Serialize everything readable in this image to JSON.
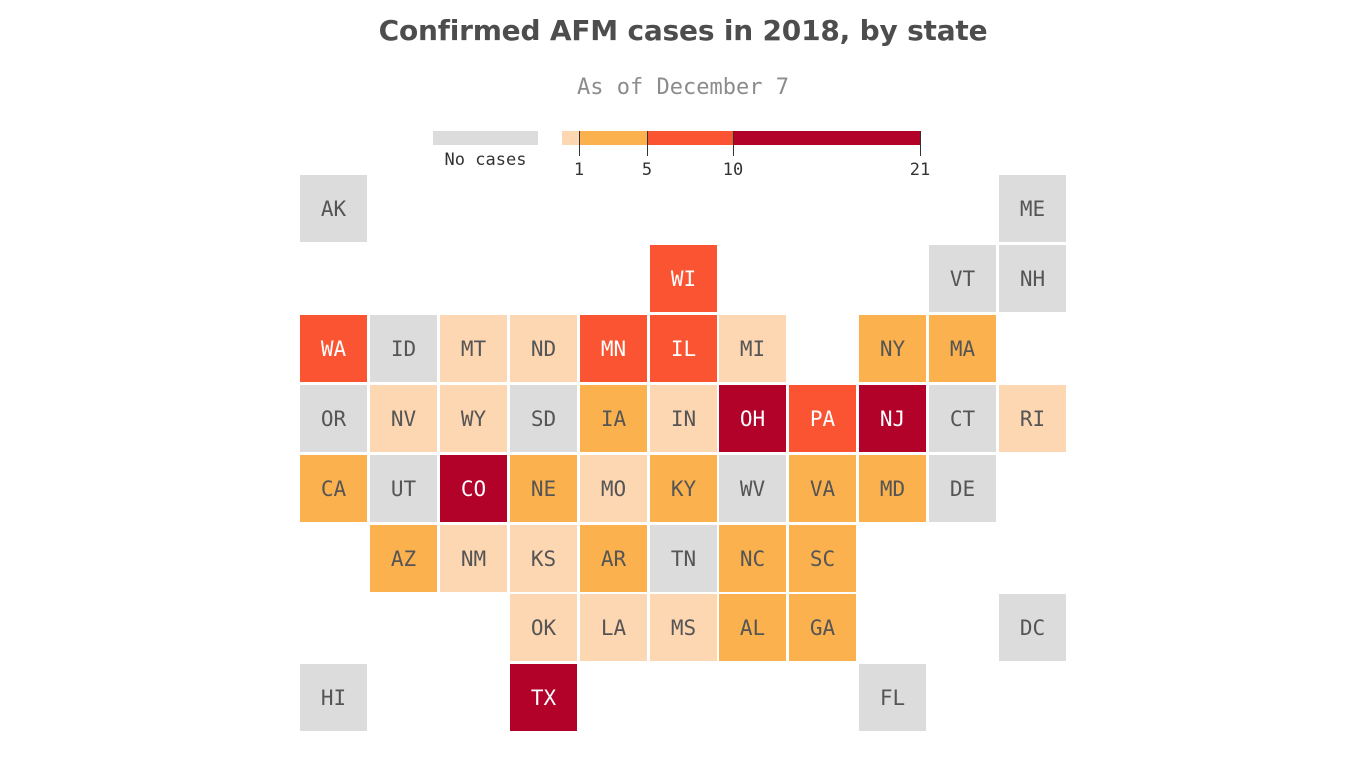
{
  "title": "Confirmed AFM cases in 2018, by state",
  "subtitle": "As of December 7",
  "colors": {
    "none": "#dcdcdc",
    "c1": "#fdd6b2",
    "c2": "#fbb24e",
    "c3": "#fb5432",
    "c4": "#b2022a",
    "text_dark": "#555555",
    "text_light": "#ffffff"
  },
  "legend": {
    "no_cases_label": "No cases",
    "ticks": [
      {
        "value": "1"
      },
      {
        "value": "5"
      },
      {
        "value": "10"
      },
      {
        "value": "21"
      }
    ],
    "bins": [
      {
        "from": 0,
        "to": 1,
        "color": "#fdd6b2"
      },
      {
        "from": 1,
        "to": 5,
        "color": "#fbb24e"
      },
      {
        "from": 5,
        "to": 10,
        "color": "#fb5432"
      },
      {
        "from": 10,
        "to": 21,
        "color": "#b2022a"
      }
    ]
  },
  "chart_data": {
    "type": "tile-grid-map",
    "title": "Confirmed AFM cases in 2018, by state",
    "subtitle": "As of December 7",
    "color_scale": "binned: no cases (0) grey; 1; 1-5; 5-10; 10-21",
    "states": [
      {
        "abbr": "AK",
        "row": 0,
        "col": 0,
        "bin": "none"
      },
      {
        "abbr": "ME",
        "row": 0,
        "col": 10,
        "bin": "none"
      },
      {
        "abbr": "WI",
        "row": 1,
        "col": 5,
        "bin": "c3"
      },
      {
        "abbr": "VT",
        "row": 1,
        "col": 9,
        "bin": "none"
      },
      {
        "abbr": "NH",
        "row": 1,
        "col": 10,
        "bin": "none"
      },
      {
        "abbr": "WA",
        "row": 2,
        "col": 0,
        "bin": "c3"
      },
      {
        "abbr": "ID",
        "row": 2,
        "col": 1,
        "bin": "none"
      },
      {
        "abbr": "MT",
        "row": 2,
        "col": 2,
        "bin": "c1"
      },
      {
        "abbr": "ND",
        "row": 2,
        "col": 3,
        "bin": "c1"
      },
      {
        "abbr": "MN",
        "row": 2,
        "col": 4,
        "bin": "c3"
      },
      {
        "abbr": "IL",
        "row": 2,
        "col": 5,
        "bin": "c3"
      },
      {
        "abbr": "MI",
        "row": 2,
        "col": 6,
        "bin": "c1"
      },
      {
        "abbr": "NY",
        "row": 2,
        "col": 8,
        "bin": "c2"
      },
      {
        "abbr": "MA",
        "row": 2,
        "col": 9,
        "bin": "c2"
      },
      {
        "abbr": "OR",
        "row": 3,
        "col": 0,
        "bin": "none"
      },
      {
        "abbr": "NV",
        "row": 3,
        "col": 1,
        "bin": "c1"
      },
      {
        "abbr": "WY",
        "row": 3,
        "col": 2,
        "bin": "c1"
      },
      {
        "abbr": "SD",
        "row": 3,
        "col": 3,
        "bin": "none"
      },
      {
        "abbr": "IA",
        "row": 3,
        "col": 4,
        "bin": "c2"
      },
      {
        "abbr": "IN",
        "row": 3,
        "col": 5,
        "bin": "c1"
      },
      {
        "abbr": "OH",
        "row": 3,
        "col": 6,
        "bin": "c4"
      },
      {
        "abbr": "PA",
        "row": 3,
        "col": 7,
        "bin": "c3"
      },
      {
        "abbr": "NJ",
        "row": 3,
        "col": 8,
        "bin": "c4"
      },
      {
        "abbr": "CT",
        "row": 3,
        "col": 9,
        "bin": "none"
      },
      {
        "abbr": "RI",
        "row": 3,
        "col": 10,
        "bin": "c1"
      },
      {
        "abbr": "CA",
        "row": 4,
        "col": 0,
        "bin": "c2"
      },
      {
        "abbr": "UT",
        "row": 4,
        "col": 1,
        "bin": "none"
      },
      {
        "abbr": "CO",
        "row": 4,
        "col": 2,
        "bin": "c4"
      },
      {
        "abbr": "NE",
        "row": 4,
        "col": 3,
        "bin": "c2"
      },
      {
        "abbr": "MO",
        "row": 4,
        "col": 4,
        "bin": "c1"
      },
      {
        "abbr": "KY",
        "row": 4,
        "col": 5,
        "bin": "c2"
      },
      {
        "abbr": "WV",
        "row": 4,
        "col": 6,
        "bin": "none"
      },
      {
        "abbr": "VA",
        "row": 4,
        "col": 7,
        "bin": "c2"
      },
      {
        "abbr": "MD",
        "row": 4,
        "col": 8,
        "bin": "c2"
      },
      {
        "abbr": "DE",
        "row": 4,
        "col": 9,
        "bin": "none"
      },
      {
        "abbr": "AZ",
        "row": 5,
        "col": 1,
        "bin": "c2"
      },
      {
        "abbr": "NM",
        "row": 5,
        "col": 2,
        "bin": "c1"
      },
      {
        "abbr": "KS",
        "row": 5,
        "col": 3,
        "bin": "c1"
      },
      {
        "abbr": "AR",
        "row": 5,
        "col": 4,
        "bin": "c2"
      },
      {
        "abbr": "TN",
        "row": 5,
        "col": 5,
        "bin": "none"
      },
      {
        "abbr": "NC",
        "row": 5,
        "col": 6,
        "bin": "c2"
      },
      {
        "abbr": "SC",
        "row": 5,
        "col": 7,
        "bin": "c2"
      },
      {
        "abbr": "OK",
        "row": 6,
        "col": 3,
        "bin": "c1"
      },
      {
        "abbr": "LA",
        "row": 6,
        "col": 4,
        "bin": "c1"
      },
      {
        "abbr": "MS",
        "row": 6,
        "col": 5,
        "bin": "c1"
      },
      {
        "abbr": "AL",
        "row": 6,
        "col": 6,
        "bin": "c2"
      },
      {
        "abbr": "GA",
        "row": 6,
        "col": 7,
        "bin": "c2"
      },
      {
        "abbr": "DC",
        "row": 6,
        "col": 10,
        "bin": "none"
      },
      {
        "abbr": "HI",
        "row": 7,
        "col": 0,
        "bin": "none"
      },
      {
        "abbr": "TX",
        "row": 7,
        "col": 3,
        "bin": "c4"
      },
      {
        "abbr": "FL",
        "row": 7,
        "col": 8,
        "bin": "none"
      }
    ]
  }
}
